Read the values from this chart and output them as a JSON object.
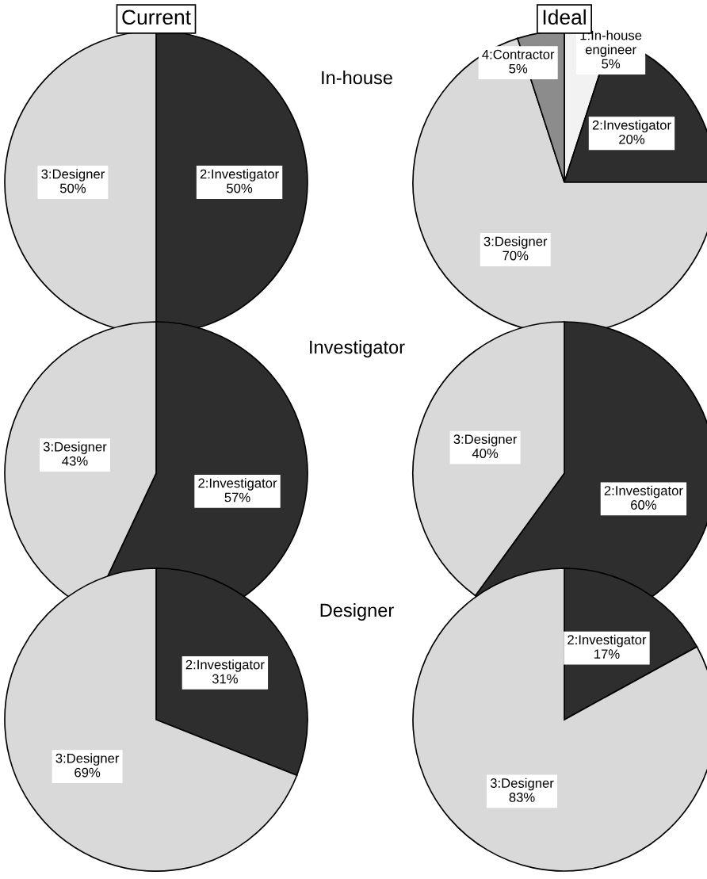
{
  "chart_data": [
    {
      "type": "pie",
      "title": "Current",
      "subtitle": "In-house",
      "categories": [
        "2:Investigator",
        "3:Designer"
      ],
      "values": [
        50,
        50
      ],
      "colors": [
        "#2e2e2e",
        "#d9d9d9"
      ],
      "value_labels": [
        "50%",
        "50%"
      ]
    },
    {
      "type": "pie",
      "title": "Ideal",
      "categories": [
        "1:In-house engineer",
        "2:Investigator",
        "3:Designer",
        "4:Contractor"
      ],
      "values": [
        5,
        20,
        70,
        5
      ],
      "colors": [
        "#f2f2f2",
        "#2e2e2e",
        "#d9d9d9",
        "#8c8c8c"
      ],
      "value_labels": [
        "5%",
        "20%",
        "70%",
        "5%"
      ]
    },
    {
      "type": "pie",
      "subtitle": "Investigator",
      "categories": [
        "2:Investigator",
        "3:Designer"
      ],
      "values": [
        57,
        43
      ],
      "colors": [
        "#2e2e2e",
        "#d9d9d9"
      ],
      "value_labels": [
        "57%",
        "43%"
      ]
    },
    {
      "type": "pie",
      "categories": [
        "2:Investigator",
        "3:Designer"
      ],
      "values": [
        60,
        40
      ],
      "colors": [
        "#2e2e2e",
        "#d9d9d9"
      ],
      "value_labels": [
        "60%",
        "40%"
      ]
    },
    {
      "type": "pie",
      "subtitle": "Designer",
      "categories": [
        "2:Investigator",
        "3:Designer"
      ],
      "values": [
        31,
        69
      ],
      "colors": [
        "#2e2e2e",
        "#d9d9d9"
      ],
      "value_labels": [
        "31%",
        "69%"
      ]
    },
    {
      "type": "pie",
      "categories": [
        "2:Investigator",
        "3:Designer"
      ],
      "values": [
        17,
        83
      ],
      "colors": [
        "#2e2e2e",
        "#d9d9d9"
      ],
      "value_labels": [
        "17%",
        "83%"
      ]
    }
  ]
}
